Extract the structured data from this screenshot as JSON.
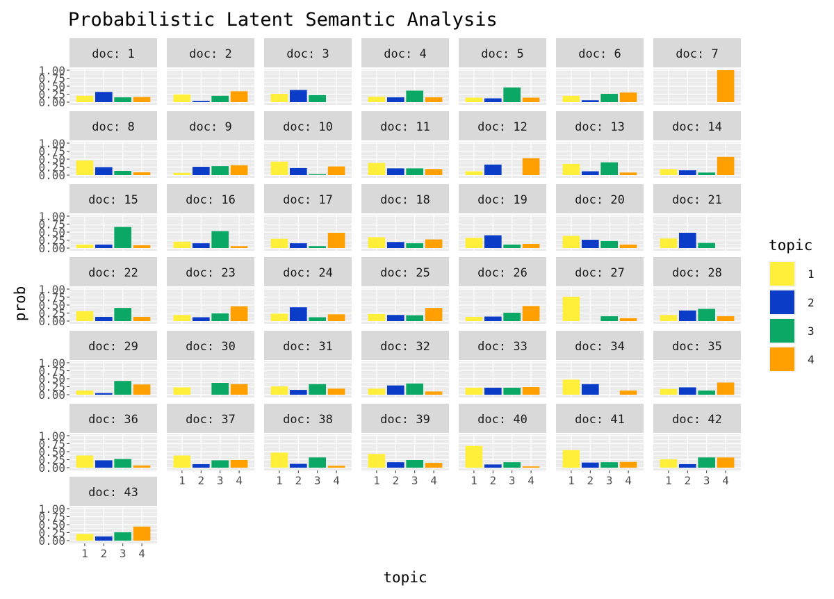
{
  "chart_data": {
    "type": "bar",
    "title": "Probabilistic Latent Semantic Analysis",
    "xlabel": "topic",
    "ylabel": "prob",
    "categories": [
      "1",
      "2",
      "3",
      "4"
    ],
    "y_ticks": [
      "0.00",
      "0.25",
      "0.50",
      "0.75",
      "1.00"
    ],
    "ylim": [
      0,
      1.0
    ],
    "facet_prefix": "doc: ",
    "legend": {
      "title": "topic",
      "position": "right",
      "items": [
        {
          "label": "1",
          "color": "#FFEE3A"
        },
        {
          "label": "2",
          "color": "#0A3CC8"
        },
        {
          "label": "3",
          "color": "#0AA864"
        },
        {
          "label": "4",
          "color": "#FFA000"
        }
      ]
    },
    "panels": [
      {
        "doc": "1",
        "values": [
          0.2,
          0.32,
          0.15,
          0.16
        ]
      },
      {
        "doc": "2",
        "values": [
          0.24,
          0.04,
          0.2,
          0.34
        ]
      },
      {
        "doc": "3",
        "values": [
          0.26,
          0.38,
          0.22,
          0.0
        ]
      },
      {
        "doc": "4",
        "values": [
          0.17,
          0.15,
          0.36,
          0.15
        ]
      },
      {
        "doc": "5",
        "values": [
          0.14,
          0.12,
          0.46,
          0.14
        ]
      },
      {
        "doc": "6",
        "values": [
          0.2,
          0.06,
          0.26,
          0.3
        ]
      },
      {
        "doc": "7",
        "values": [
          0.0,
          0.0,
          0.0,
          1.0
        ]
      },
      {
        "doc": "8",
        "values": [
          0.46,
          0.25,
          0.13,
          0.09
        ]
      },
      {
        "doc": "9",
        "values": [
          0.07,
          0.26,
          0.28,
          0.31
        ]
      },
      {
        "doc": "10",
        "values": [
          0.42,
          0.22,
          0.03,
          0.27
        ]
      },
      {
        "doc": "11",
        "values": [
          0.38,
          0.21,
          0.21,
          0.19
        ]
      },
      {
        "doc": "12",
        "values": [
          0.12,
          0.33,
          0.0,
          0.53
        ]
      },
      {
        "doc": "13",
        "values": [
          0.35,
          0.12,
          0.4,
          0.08
        ]
      },
      {
        "doc": "14",
        "values": [
          0.19,
          0.15,
          0.08,
          0.57
        ]
      },
      {
        "doc": "15",
        "values": [
          0.11,
          0.11,
          0.66,
          0.09
        ]
      },
      {
        "doc": "16",
        "values": [
          0.2,
          0.15,
          0.53,
          0.06
        ]
      },
      {
        "doc": "17",
        "values": [
          0.29,
          0.15,
          0.06,
          0.48
        ]
      },
      {
        "doc": "18",
        "values": [
          0.34,
          0.19,
          0.15,
          0.27
        ]
      },
      {
        "doc": "19",
        "values": [
          0.32,
          0.4,
          0.11,
          0.13
        ]
      },
      {
        "doc": "20",
        "values": [
          0.38,
          0.26,
          0.22,
          0.11
        ]
      },
      {
        "doc": "21",
        "values": [
          0.3,
          0.48,
          0.16,
          0.0
        ]
      },
      {
        "doc": "22",
        "values": [
          0.31,
          0.13,
          0.41,
          0.13
        ]
      },
      {
        "doc": "23",
        "values": [
          0.19,
          0.12,
          0.24,
          0.46
        ]
      },
      {
        "doc": "24",
        "values": [
          0.23,
          0.43,
          0.12,
          0.21
        ]
      },
      {
        "doc": "25",
        "values": [
          0.22,
          0.19,
          0.18,
          0.41
        ]
      },
      {
        "doc": "26",
        "values": [
          0.13,
          0.14,
          0.26,
          0.47
        ]
      },
      {
        "doc": "27",
        "values": [
          0.76,
          0.0,
          0.15,
          0.09
        ]
      },
      {
        "doc": "28",
        "values": [
          0.19,
          0.33,
          0.38,
          0.15
        ]
      },
      {
        "doc": "29",
        "values": [
          0.13,
          0.05,
          0.43,
          0.32
        ]
      },
      {
        "doc": "30",
        "values": [
          0.23,
          0.0,
          0.37,
          0.33
        ]
      },
      {
        "doc": "31",
        "values": [
          0.26,
          0.15,
          0.33,
          0.19
        ]
      },
      {
        "doc": "32",
        "values": [
          0.19,
          0.29,
          0.35,
          0.1
        ]
      },
      {
        "doc": "33",
        "values": [
          0.22,
          0.22,
          0.22,
          0.24
        ]
      },
      {
        "doc": "34",
        "values": [
          0.47,
          0.33,
          0.0,
          0.13
        ]
      },
      {
        "doc": "35",
        "values": [
          0.18,
          0.23,
          0.13,
          0.38
        ]
      },
      {
        "doc": "36",
        "values": [
          0.38,
          0.23,
          0.27,
          0.07
        ]
      },
      {
        "doc": "37",
        "values": [
          0.38,
          0.11,
          0.23,
          0.24
        ]
      },
      {
        "doc": "38",
        "values": [
          0.47,
          0.12,
          0.32,
          0.06
        ]
      },
      {
        "doc": "39",
        "values": [
          0.43,
          0.17,
          0.24,
          0.15
        ]
      },
      {
        "doc": "40",
        "values": [
          0.68,
          0.1,
          0.17,
          0.04
        ]
      },
      {
        "doc": "41",
        "values": [
          0.55,
          0.16,
          0.17,
          0.18
        ]
      },
      {
        "doc": "42",
        "values": [
          0.26,
          0.11,
          0.32,
          0.32
        ]
      },
      {
        "doc": "43",
        "values": [
          0.21,
          0.13,
          0.26,
          0.44
        ]
      }
    ]
  }
}
